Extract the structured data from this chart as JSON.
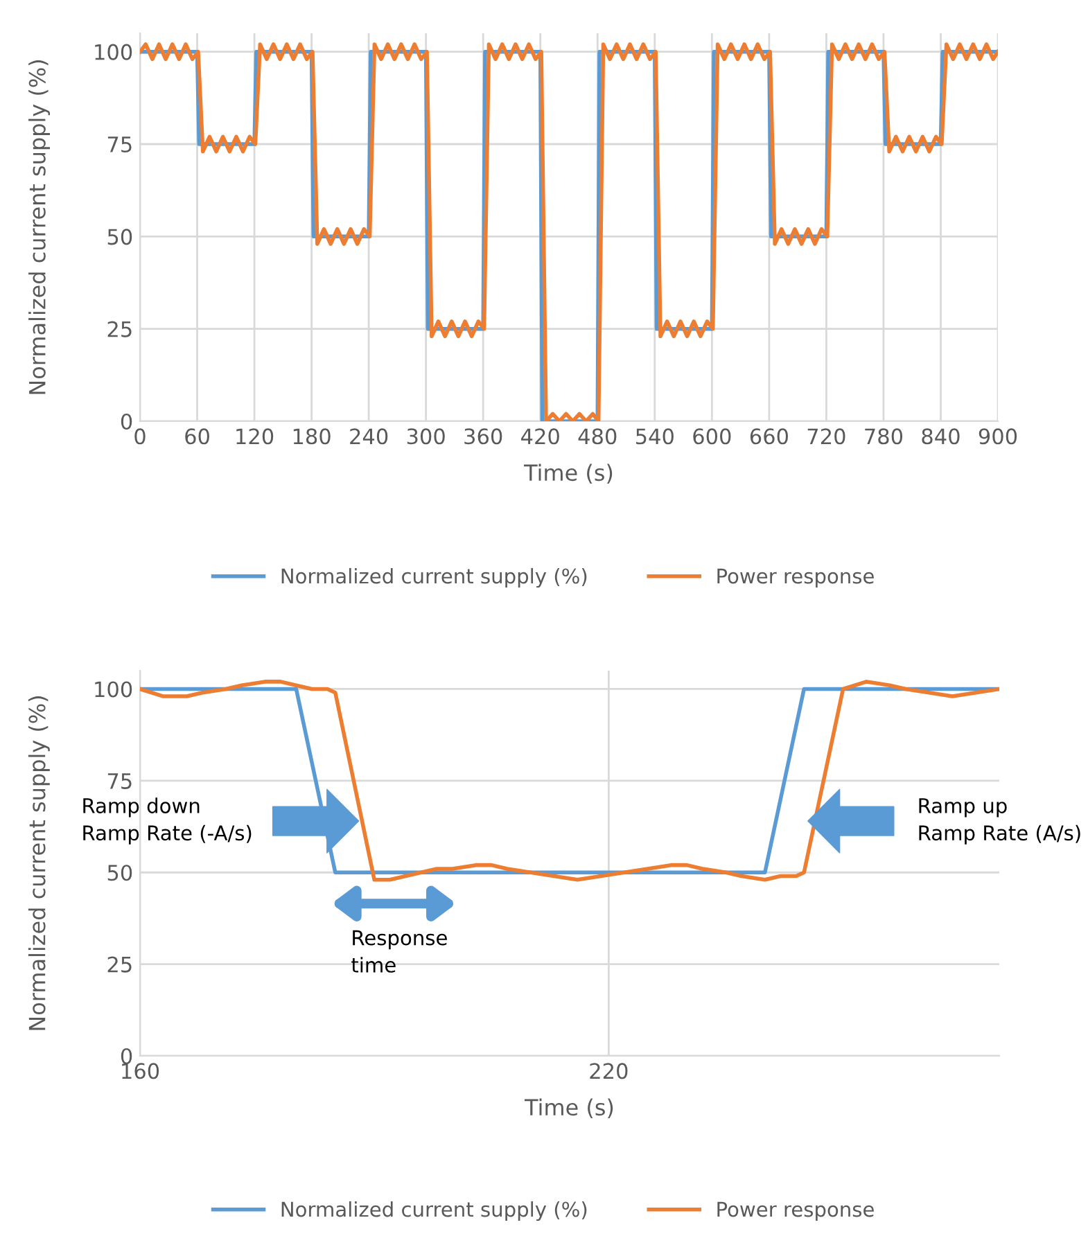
{
  "chart_data": [
    {
      "type": "line",
      "xlabel": "Time (s)",
      "ylabel": "Normalized current supply (%)",
      "xlim": [
        0,
        900
      ],
      "xticks": [
        0,
        60,
        120,
        180,
        240,
        300,
        360,
        420,
        480,
        540,
        600,
        660,
        720,
        780,
        840,
        900
      ],
      "ylim": [
        0,
        105
      ],
      "yticks": [
        0,
        25,
        50,
        75,
        100
      ],
      "grid": true,
      "legend": "bottom",
      "series": [
        {
          "name": "Normalized current supply (%)",
          "color": "#5b9bd5",
          "x": [
            0,
            60,
            62,
            120,
            122,
            180,
            182,
            240,
            242,
            300,
            302,
            360,
            362,
            420,
            422,
            480,
            482,
            540,
            542,
            600,
            602,
            660,
            662,
            720,
            722,
            780,
            782,
            840,
            842,
            900
          ],
          "values": [
            100,
            100,
            75,
            75,
            100,
            100,
            50,
            50,
            100,
            100,
            25,
            25,
            100,
            100,
            0,
            0,
            100,
            100,
            25,
            25,
            100,
            100,
            50,
            50,
            100,
            100,
            75,
            75,
            100,
            100
          ]
        },
        {
          "name": "Power response",
          "color": "#ed7d31",
          "x": [
            0,
            6,
            13,
            20,
            27,
            34,
            41,
            48,
            55,
            61,
            66,
            73,
            80,
            87,
            94,
            101,
            108,
            115,
            121,
            126,
            133,
            140,
            147,
            154,
            161,
            168,
            175,
            181,
            186,
            193,
            200,
            207,
            214,
            221,
            228,
            235,
            241,
            246,
            253,
            260,
            267,
            274,
            281,
            288,
            295,
            301,
            306,
            313,
            320,
            327,
            334,
            341,
            348,
            355,
            361,
            366,
            373,
            380,
            387,
            394,
            401,
            408,
            415,
            421,
            426,
            433,
            440,
            447,
            454,
            461,
            468,
            475,
            481,
            486,
            493,
            500,
            507,
            514,
            521,
            528,
            535,
            541,
            546,
            553,
            560,
            567,
            574,
            581,
            588,
            595,
            601,
            606,
            613,
            620,
            627,
            634,
            641,
            648,
            655,
            661,
            666,
            673,
            680,
            687,
            694,
            701,
            708,
            715,
            721,
            726,
            733,
            740,
            747,
            754,
            761,
            768,
            775,
            781,
            786,
            793,
            800,
            807,
            814,
            821,
            828,
            835,
            841,
            846,
            853,
            860,
            867,
            874,
            881,
            888,
            895,
            900
          ],
          "values": [
            100,
            102,
            98,
            102,
            98,
            102,
            98,
            102,
            98,
            100,
            73,
            77,
            73,
            77,
            73,
            77,
            73,
            77,
            75,
            102,
            98,
            102,
            98,
            102,
            98,
            102,
            98,
            100,
            48,
            52,
            48,
            52,
            48,
            52,
            48,
            52,
            50,
            102,
            98,
            102,
            98,
            102,
            98,
            102,
            98,
            100,
            23,
            27,
            23,
            27,
            23,
            27,
            23,
            27,
            25,
            102,
            98,
            102,
            98,
            102,
            98,
            102,
            98,
            100,
            0,
            2,
            0,
            2,
            0,
            2,
            0,
            2,
            0,
            102,
            98,
            102,
            98,
            102,
            98,
            102,
            98,
            100,
            23,
            27,
            23,
            27,
            23,
            27,
            23,
            27,
            25,
            102,
            98,
            102,
            98,
            102,
            98,
            102,
            98,
            100,
            48,
            52,
            48,
            52,
            48,
            52,
            48,
            52,
            50,
            102,
            98,
            102,
            98,
            102,
            98,
            102,
            98,
            100,
            73,
            77,
            73,
            77,
            73,
            77,
            73,
            77,
            75,
            102,
            98,
            102,
            98,
            102,
            98,
            102,
            98,
            100
          ]
        }
      ]
    },
    {
      "type": "line",
      "xlabel": "Time (s)",
      "ylabel": "Normalized current supply (%)",
      "xlim": [
        160,
        270
      ],
      "xticks": [
        160,
        220
      ],
      "ylim": [
        0,
        105
      ],
      "yticks": [
        0,
        25,
        50,
        75,
        100
      ],
      "grid": true,
      "legend": "bottom",
      "annotations": [
        "Ramp down\nRamp Rate (-A/s)",
        "Response\ntime",
        "Ramp up\nRamp Rate (A/s)"
      ],
      "series": [
        {
          "name": "Normalized current supply (%)",
          "color": "#5b9bd5",
          "x": [
            160,
            180,
            185,
            240,
            245,
            270
          ],
          "values": [
            100,
            100,
            50,
            50,
            100,
            100
          ]
        },
        {
          "name": "Power response",
          "color": "#ed7d31",
          "x": [
            160,
            163,
            166,
            168,
            171,
            173,
            176,
            178,
            180,
            182,
            184,
            185,
            190,
            192,
            194,
            196,
            198,
            200,
            203,
            205,
            207,
            210,
            213,
            216,
            219,
            222,
            225,
            228,
            230,
            232,
            235,
            237,
            240,
            242,
            244,
            245,
            250,
            253,
            256,
            258,
            261,
            264,
            267,
            270
          ],
          "values": [
            100,
            98,
            98,
            99,
            100,
            101,
            102,
            102,
            101,
            100,
            100,
            99,
            48,
            48,
            49,
            50,
            51,
            51,
            52,
            52,
            51,
            50,
            49,
            48,
            49,
            50,
            51,
            52,
            52,
            51,
            50,
            49,
            48,
            49,
            49,
            50,
            100,
            102,
            101,
            100,
            99,
            98,
            99,
            100
          ]
        }
      ]
    }
  ]
}
